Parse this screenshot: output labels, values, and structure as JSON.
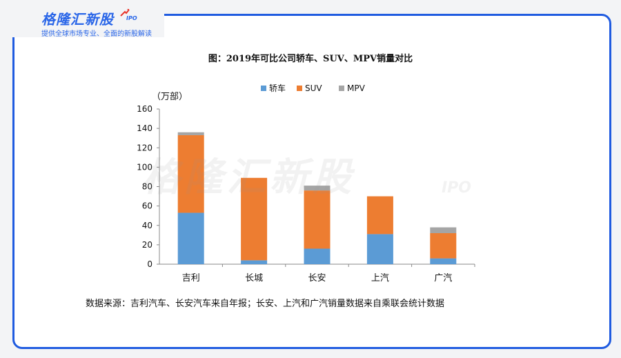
{
  "brand": {
    "logo_text": "格隆汇新股",
    "logo_suffix": "IPO",
    "tagline": "提供全球市场专业、全面的新股解读"
  },
  "watermark": {
    "text": "格隆汇新股",
    "suffix": "IPO"
  },
  "source_note": "数据来源：吉利汽车、长安汽车来自年报；长安、上汽和广汽销量数据来自乘联会统计数据",
  "colors": {
    "border": "#1f5be0",
    "brand": "#2a66e8"
  },
  "chart_data": {
    "type": "bar",
    "stacked": true,
    "title": "图：2019年可比公司轿车、SUV、MPV销量对比",
    "ylabel": "（万部）",
    "xlabel": "",
    "categories": [
      "吉利",
      "长城",
      "长安",
      "上汽",
      "广汽"
    ],
    "series": [
      {
        "name": "轿车",
        "color": "#5b9bd5",
        "values": [
          53,
          4,
          16,
          31,
          6
        ]
      },
      {
        "name": "SUV",
        "color": "#ed7d31",
        "values": [
          80,
          85,
          60,
          39,
          26
        ]
      },
      {
        "name": "MPV",
        "color": "#a5a5a5",
        "values": [
          3,
          0,
          5,
          0,
          6
        ]
      }
    ],
    "ylim": [
      0,
      160
    ],
    "yticks": [
      0,
      20,
      40,
      60,
      80,
      100,
      120,
      140,
      160
    ],
    "legend_position": "top-center",
    "grid": false
  }
}
